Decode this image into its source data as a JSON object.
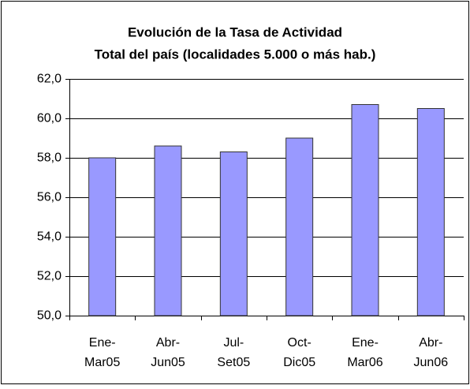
{
  "chart_data": {
    "type": "bar",
    "title": [
      "Evolución de la Tasa de Actividad",
      "Total del país (localidades 5.000  o más hab.)"
    ],
    "categories": [
      [
        "Ene-",
        "Mar05"
      ],
      [
        "Abr-",
        "Jun05"
      ],
      [
        "Jul-",
        "Set05"
      ],
      [
        "Oct-",
        "Dic05"
      ],
      [
        "Ene-",
        "Mar06"
      ],
      [
        "Abr-",
        "Jun06"
      ]
    ],
    "values": [
      58.0,
      58.6,
      58.3,
      59.0,
      60.7,
      60.5
    ],
    "color": "#9999ff",
    "ylim": [
      50,
      62
    ],
    "yticks": [
      {
        "value": 50,
        "label": "50,0"
      },
      {
        "value": 52,
        "label": "52,0"
      },
      {
        "value": 54,
        "label": "54,0"
      },
      {
        "value": 56,
        "label": "56,0"
      },
      {
        "value": 58,
        "label": "58,0"
      },
      {
        "value": 60,
        "label": "60,0"
      },
      {
        "value": 62,
        "label": "62,0"
      }
    ],
    "grid": true
  }
}
